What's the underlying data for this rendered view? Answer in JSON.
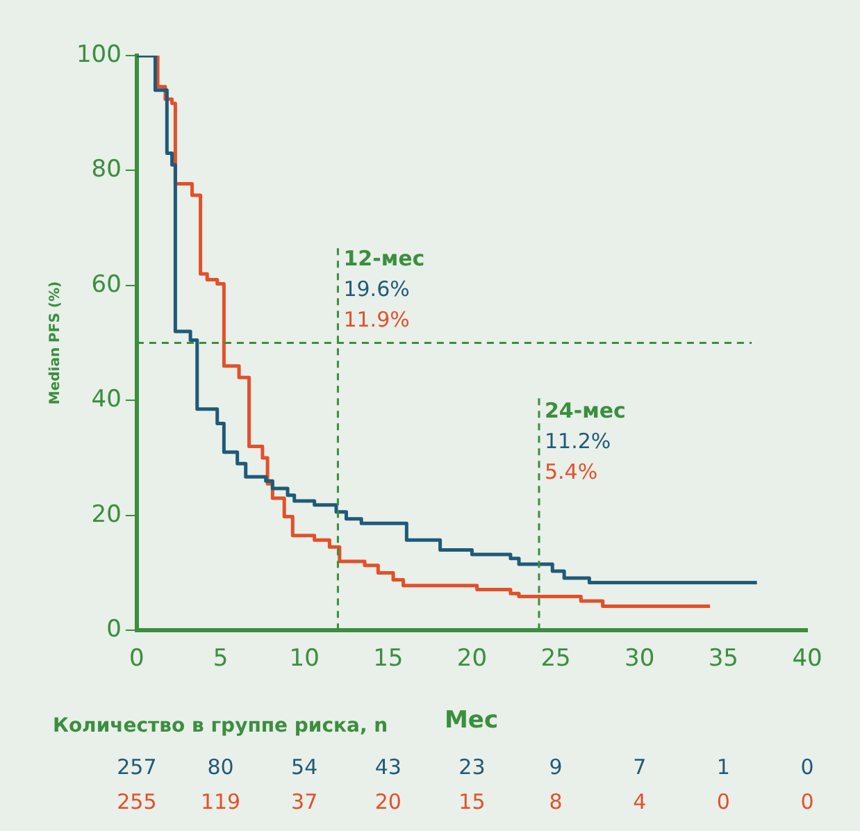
{
  "chart_data": {
    "type": "step",
    "ylabel": "Median PFS (%)",
    "xlabel": "Мес",
    "xlim": [
      0,
      40
    ],
    "xticks": [
      0,
      5,
      10,
      15,
      20,
      25,
      30,
      35,
      40
    ],
    "ylim": [
      0,
      100
    ],
    "yticks": [
      0,
      20,
      40,
      60,
      80,
      100
    ],
    "grid": false,
    "legend": false,
    "marker": "none",
    "line_style": "solid",
    "series": [
      {
        "color": "#1f5a78",
        "x": [
          0,
          1.1,
          1.8,
          2.1,
          2.3,
          3.2,
          3.6,
          4.8,
          5.2,
          6,
          6.5,
          7.7,
          8.1,
          9,
          9.4,
          10.6,
          11.9,
          12.5,
          13.4,
          16.1,
          18.1,
          20,
          22.3,
          22.8,
          24.8,
          25.5,
          27,
          37
        ],
        "values": [
          100,
          94,
          83,
          81,
          52,
          50.5,
          38.5,
          36,
          31,
          29,
          26.7,
          26,
          24.7,
          23.5,
          22.5,
          21.8,
          20.6,
          19.4,
          18.6,
          15.7,
          14,
          13.2,
          12.5,
          11.5,
          10.3,
          9.1,
          8.3,
          8.3
        ]
      },
      {
        "color": "#e2502a",
        "x": [
          0,
          1.25,
          1.7,
          2.1,
          2.3,
          3.3,
          3.8,
          4.2,
          4.8,
          5.2,
          6.1,
          6.7,
          7.5,
          7.8,
          8.1,
          8.8,
          9.3,
          10.6,
          11.5,
          12.1,
          13.6,
          14.4,
          15.3,
          15.9,
          20.3,
          22.3,
          22.8,
          26.5,
          27.8,
          34.2
        ],
        "values": [
          100,
          94.6,
          92.4,
          91.7,
          77.7,
          75.7,
          62,
          61,
          60.3,
          46,
          44,
          32,
          30,
          25.5,
          23,
          19.8,
          16.5,
          15.7,
          14.5,
          12,
          11.3,
          10,
          8.8,
          7.8,
          7.1,
          6.4,
          5.9,
          5.1,
          4.2,
          4.2
        ]
      }
    ],
    "ref_lines": [
      {
        "axis": "y",
        "value": 50,
        "color": "#3a8f3e",
        "line_style": "dashed"
      },
      {
        "axis": "x",
        "value": 12,
        "label": "12-мес\n19.6%\n11.9%",
        "color": "#3a8f3e",
        "line_style": "dashed"
      },
      {
        "axis": "x",
        "value": 24,
        "label": "24-мес\n11.2%\n5.4%",
        "color": "#3a8f3e",
        "line_style": "dashed"
      }
    ],
    "annotations": [
      "Количество в группе риска, n",
      "257 80 54 43 23 9 7 1 0",
      "255 119 37 20 15 8 4 0 0"
    ]
  }
}
